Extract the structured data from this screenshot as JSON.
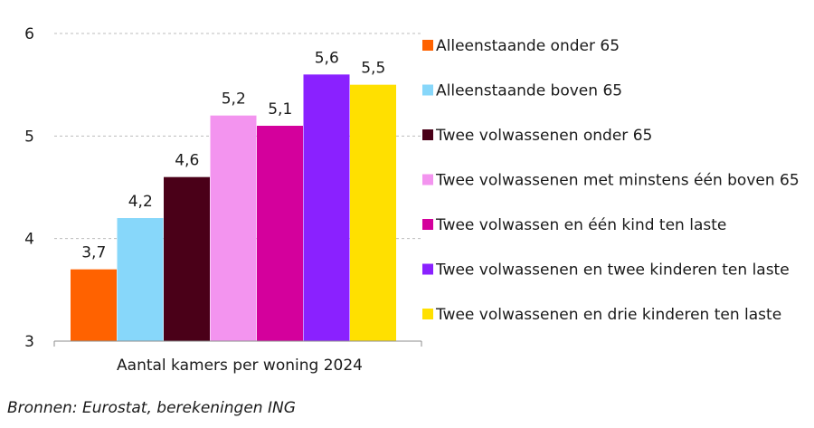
{
  "chart_data": {
    "type": "bar",
    "title": "",
    "xlabel": "",
    "ylabel": "",
    "categories": [
      "Aantal kamers per woning 2024"
    ],
    "ylim": [
      3,
      6
    ],
    "yticks": [
      "3",
      "4",
      "5",
      "6"
    ],
    "grid": "horizontal dashed",
    "legend_position": "right",
    "series": [
      {
        "name": "Alleenstaande onder 65",
        "values": [
          3.7
        ],
        "label": "3,7",
        "color": "#FF6200"
      },
      {
        "name": "Alleenstaande boven 65",
        "values": [
          4.2
        ],
        "label": "4,2",
        "color": "#87D7FA"
      },
      {
        "name": "Twee volwassenen onder 65",
        "values": [
          4.6
        ],
        "label": "4,6",
        "color": "#4A0018"
      },
      {
        "name": "Twee volwassenen met minstens één boven 65",
        "values": [
          5.2
        ],
        "label": "5,2",
        "color": "#F394EF"
      },
      {
        "name": "Twee volwassen en één kind ten laste",
        "values": [
          5.1
        ],
        "label": "5,1",
        "color": "#D4009C"
      },
      {
        "name": "Twee volwassenen en twee kinderen ten laste",
        "values": [
          5.6
        ],
        "label": "5,6",
        "color": "#8A21FF"
      },
      {
        "name": "Twee volwassenen en drie kinderen ten laste",
        "values": [
          5.5
        ],
        "label": "5,5",
        "color": "#FFE000"
      }
    ]
  },
  "source": "Bronnen: Eurostat, berekeningen ING"
}
